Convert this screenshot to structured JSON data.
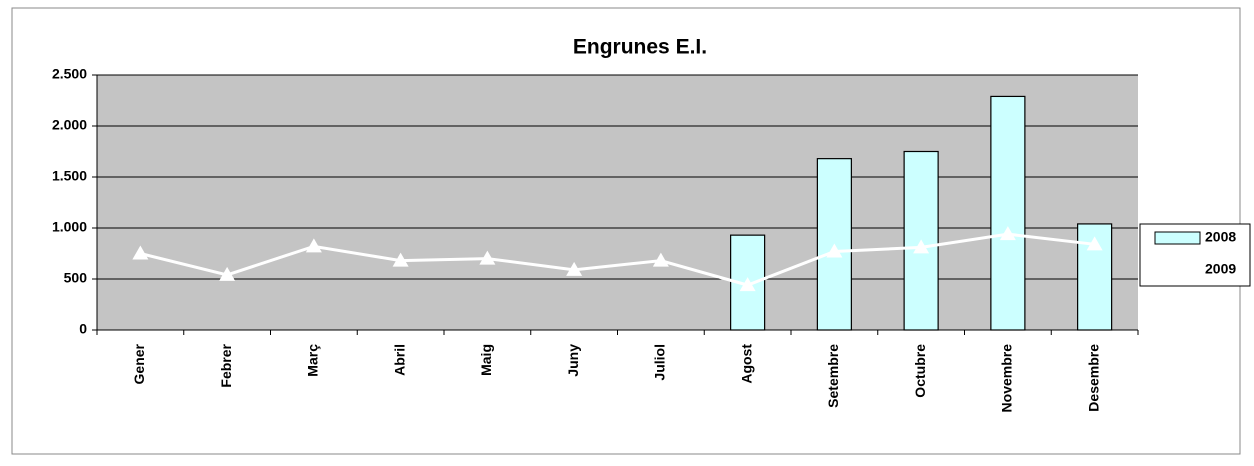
{
  "chart_data": {
    "type": "bar_line",
    "title": "Engrunes E.I.",
    "categories": [
      "Gener",
      "Febrer",
      "Març",
      "Abril",
      "Maig",
      "Juny",
      "Juliol",
      "Agost",
      "Setembre",
      "Octubre",
      "Novembre",
      "Desembre"
    ],
    "series": [
      {
        "name": "2008",
        "type": "bar",
        "color": "#ccffff",
        "values": [
          null,
          null,
          null,
          null,
          null,
          null,
          null,
          930,
          1680,
          1750,
          2290,
          1040
        ]
      },
      {
        "name": "2009",
        "type": "line",
        "color": "#ffffff",
        "values": [
          750,
          540,
          820,
          680,
          700,
          590,
          680,
          440,
          770,
          810,
          940,
          840
        ]
      }
    ],
    "ylim": [
      0,
      2500
    ],
    "yticks": [
      0,
      500,
      {
        "value": 1000,
        "label": "1.000"
      },
      {
        "value": 1500,
        "label": "1.500"
      },
      {
        "value": 2000,
        "label": "2.000"
      },
      {
        "value": 2500,
        "label": "2.500"
      }
    ],
    "grid": true,
    "legend": "right"
  }
}
